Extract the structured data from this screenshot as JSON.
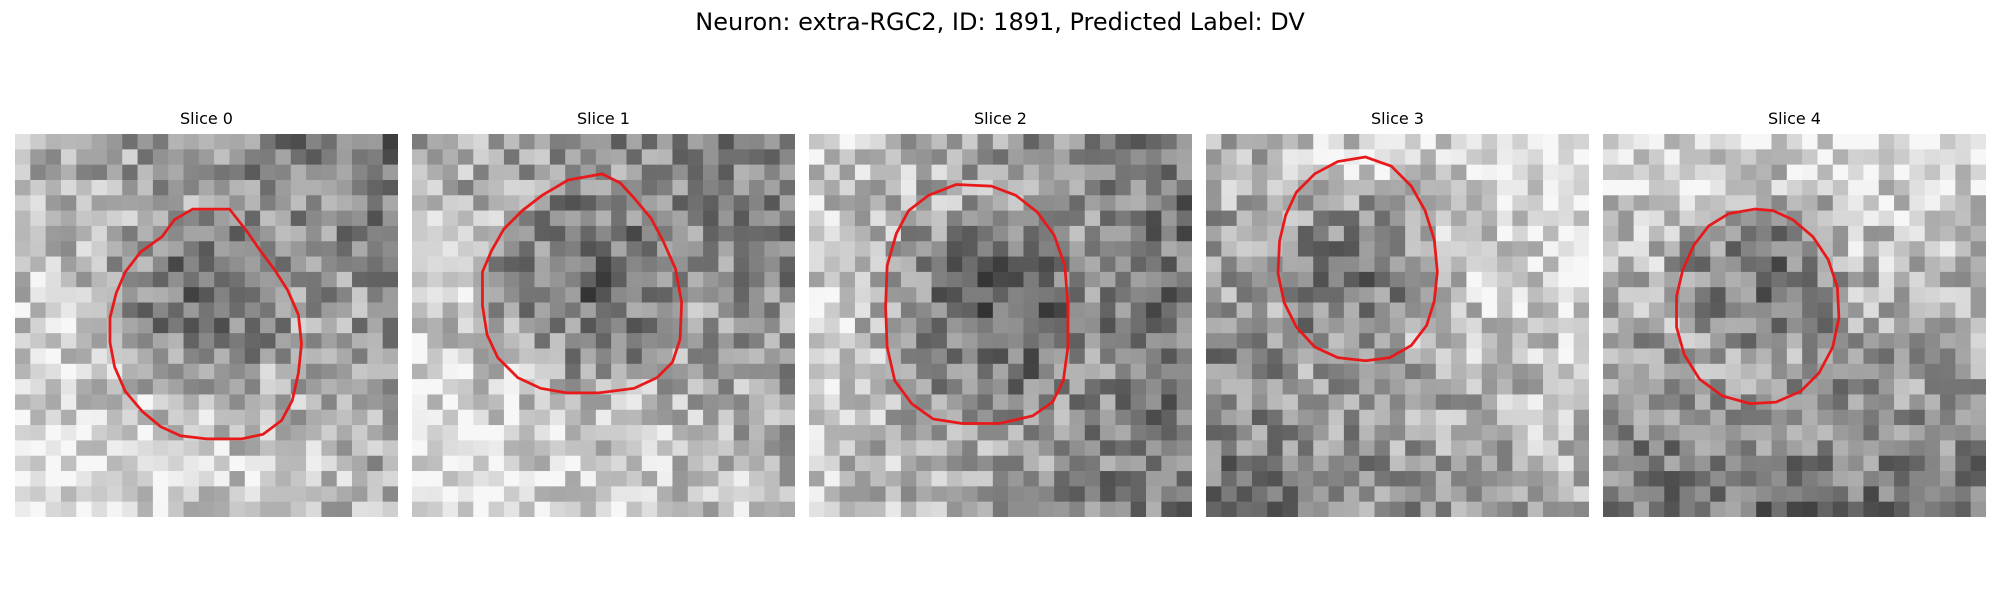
{
  "figure": {
    "title": "Neuron: extra-RGC2, ID: 1891, Predicted Label: DV"
  },
  "colors": {
    "contour": "#e8191a",
    "background": "#ffffff",
    "colormap": "grayscale"
  },
  "panels": [
    {
      "title": "Slice 0",
      "contour": [
        [
          14,
          4.9
        ],
        [
          11.6,
          4.9
        ],
        [
          10.4,
          5.6
        ],
        [
          9.6,
          6.7
        ],
        [
          8.2,
          7.7
        ],
        [
          7.2,
          9
        ],
        [
          6.6,
          10.4
        ],
        [
          6.2,
          12
        ],
        [
          6.2,
          13.6
        ],
        [
          6.5,
          15.2
        ],
        [
          7.2,
          16.8
        ],
        [
          8.3,
          18.1
        ],
        [
          9.5,
          19.1
        ],
        [
          10.8,
          19.7
        ],
        [
          12.5,
          19.9
        ],
        [
          14.8,
          19.9
        ],
        [
          16.2,
          19.6
        ],
        [
          17.4,
          18.7
        ],
        [
          18.1,
          17.4
        ],
        [
          18.5,
          15.6
        ],
        [
          18.7,
          13.7
        ],
        [
          18.5,
          11.8
        ],
        [
          17.8,
          10.2
        ],
        [
          16.9,
          8.8
        ],
        [
          16,
          7.6
        ],
        [
          15.1,
          6.3
        ]
      ],
      "seed": 1891,
      "dark_region": [
        11.8,
        11.2,
        6.3
      ],
      "bright_side": "left-bottom"
    },
    {
      "title": "Slice 1",
      "contour": [
        [
          12.4,
          2.6
        ],
        [
          10.2,
          3
        ],
        [
          8.5,
          4
        ],
        [
          7.2,
          5
        ],
        [
          6,
          6.2
        ],
        [
          5.2,
          7.6
        ],
        [
          4.6,
          9
        ],
        [
          4.6,
          11.2
        ],
        [
          4.9,
          13.1
        ],
        [
          5.6,
          14.6
        ],
        [
          6.9,
          15.9
        ],
        [
          8.4,
          16.6
        ],
        [
          10.1,
          16.9
        ],
        [
          12.2,
          16.9
        ],
        [
          14.5,
          16.6
        ],
        [
          16,
          15.9
        ],
        [
          17,
          14.9
        ],
        [
          17.5,
          13.4
        ],
        [
          17.6,
          11
        ],
        [
          17.2,
          8.8
        ],
        [
          16.4,
          7
        ],
        [
          15.6,
          5.5
        ],
        [
          14.6,
          4.3
        ],
        [
          13.6,
          3.2
        ]
      ],
      "seed": 2031,
      "dark_region": [
        11.2,
        10.2,
        6.6
      ],
      "bright_side": "left-bottom"
    },
    {
      "title": "Slice 2",
      "contour": [
        [
          9.6,
          3.3
        ],
        [
          7.8,
          4
        ],
        [
          6.5,
          5
        ],
        [
          5.7,
          6.5
        ],
        [
          5.1,
          8.6
        ],
        [
          5,
          11.3
        ],
        [
          5.1,
          13.9
        ],
        [
          5.6,
          16.1
        ],
        [
          6.7,
          17.6
        ],
        [
          8.1,
          18.6
        ],
        [
          10,
          18.9
        ],
        [
          12.4,
          18.9
        ],
        [
          14.6,
          18.4
        ],
        [
          15.9,
          17.5
        ],
        [
          16.6,
          16.1
        ],
        [
          16.9,
          13.9
        ],
        [
          16.9,
          11.2
        ],
        [
          16.7,
          8.6
        ],
        [
          16,
          6.6
        ],
        [
          14.9,
          5.1
        ],
        [
          13.5,
          4
        ],
        [
          11.9,
          3.4
        ]
      ],
      "seed": 3057,
      "dark_region": [
        11.2,
        11.1,
        6.8
      ],
      "bright_side": "left"
    },
    {
      "title": "Slice 3",
      "contour": [
        [
          10.4,
          1.5
        ],
        [
          8.6,
          1.8
        ],
        [
          7.1,
          2.6
        ],
        [
          5.9,
          3.8
        ],
        [
          5.2,
          5.3
        ],
        [
          4.8,
          7
        ],
        [
          4.7,
          9.1
        ],
        [
          5.1,
          11
        ],
        [
          5.9,
          12.6
        ],
        [
          7.1,
          13.9
        ],
        [
          8.6,
          14.6
        ],
        [
          10.4,
          14.8
        ],
        [
          12,
          14.6
        ],
        [
          13.4,
          13.8
        ],
        [
          14.4,
          12.5
        ],
        [
          14.9,
          10.9
        ],
        [
          15.1,
          9
        ],
        [
          14.9,
          6.9
        ],
        [
          14.3,
          5
        ],
        [
          13.4,
          3.4
        ],
        [
          12.1,
          2.1
        ]
      ],
      "seed": 4099,
      "dark_region": [
        10.2,
        8.5,
        5.5
      ],
      "bright_side": "right-top"
    },
    {
      "title": "Slice 4",
      "contour": [
        [
          9.9,
          4.9
        ],
        [
          8.2,
          5.2
        ],
        [
          6.9,
          6
        ],
        [
          5.9,
          7.3
        ],
        [
          5.2,
          8.9
        ],
        [
          4.8,
          10.6
        ],
        [
          4.8,
          12.6
        ],
        [
          5.3,
          14.4
        ],
        [
          6.3,
          16
        ],
        [
          7.8,
          17.1
        ],
        [
          9.6,
          17.6
        ],
        [
          11.3,
          17.5
        ],
        [
          12.9,
          16.8
        ],
        [
          14.1,
          15.6
        ],
        [
          15,
          13.9
        ],
        [
          15.4,
          12
        ],
        [
          15.3,
          10
        ],
        [
          14.7,
          8.2
        ],
        [
          13.7,
          6.7
        ],
        [
          12.4,
          5.6
        ],
        [
          11.1,
          5
        ]
      ],
      "seed": 5107,
      "dark_region": [
        10.3,
        8.5,
        6.2
      ],
      "bright_side": "top"
    }
  ]
}
